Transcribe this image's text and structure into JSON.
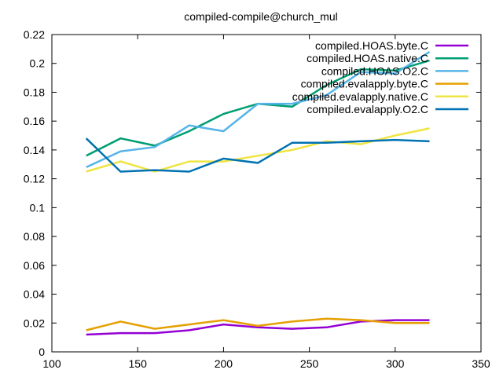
{
  "chart_data": {
    "type": "line",
    "title": "compiled-compile@church_mul",
    "xlabel": "",
    "ylabel": "",
    "xlim": [
      100,
      350
    ],
    "ylim": [
      0,
      0.22
    ],
    "xticks": [
      "100",
      "150",
      "200",
      "250",
      "300",
      "350"
    ],
    "yticks": [
      "0",
      "0.02",
      "0.04",
      "0.06",
      "0.08",
      "0.1",
      "0.12",
      "0.14",
      "0.16",
      "0.18",
      "0.2",
      "0.22"
    ],
    "grid": false,
    "legend_position": "top-right",
    "x": [
      120,
      140,
      160,
      180,
      200,
      220,
      240,
      260,
      280,
      300,
      320
    ],
    "series": [
      {
        "name": "compiled.HOAS.byte.C",
        "color": "#9400d3",
        "values": [
          0.012,
          0.013,
          0.013,
          0.015,
          0.019,
          0.017,
          0.016,
          0.017,
          0.021,
          0.022,
          0.022
        ]
      },
      {
        "name": "compiled.HOAS.native.C",
        "color": "#009e73",
        "values": [
          0.136,
          0.148,
          0.143,
          0.153,
          0.165,
          0.172,
          0.17,
          0.185,
          0.196,
          0.195,
          0.202
        ]
      },
      {
        "name": "compiled.HOAS.O2.C",
        "color": "#56b4e9",
        "values": [
          0.128,
          0.139,
          0.142,
          0.157,
          0.153,
          0.172,
          0.172,
          0.178,
          0.194,
          0.193,
          0.208
        ]
      },
      {
        "name": "compiled.evalapply.byte.C",
        "color": "#e69f00",
        "values": [
          0.015,
          0.021,
          0.016,
          0.019,
          0.022,
          0.018,
          0.021,
          0.023,
          0.022,
          0.02,
          0.02
        ]
      },
      {
        "name": "compiled.evalapply.native.C",
        "color": "#f0e442",
        "values": [
          0.125,
          0.132,
          0.125,
          0.132,
          0.132,
          0.136,
          0.14,
          0.146,
          0.144,
          0.15,
          0.155
        ]
      },
      {
        "name": "compiled.evalapply.O2.C",
        "color": "#0072b2",
        "values": [
          0.148,
          0.125,
          0.126,
          0.125,
          0.134,
          0.131,
          0.145,
          0.145,
          0.146,
          0.147,
          0.146
        ]
      }
    ]
  }
}
